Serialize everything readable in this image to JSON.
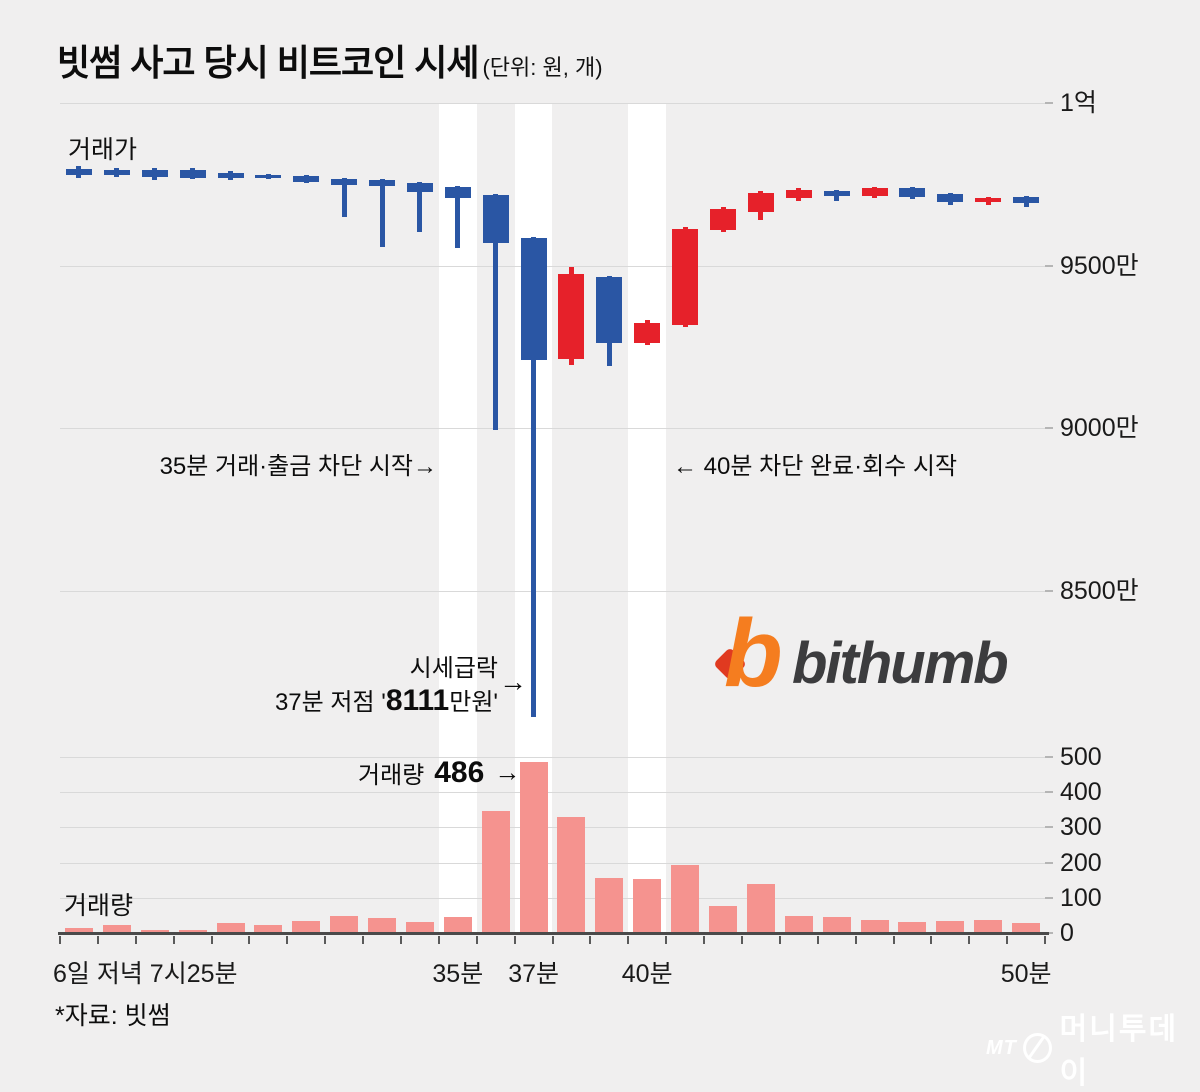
{
  "header": {
    "title": "빗썸 사고 당시 비트코인 시세",
    "unit_note": "(단위: 원, 개)"
  },
  "series_labels": {
    "price": "거래가",
    "volume": "거래량"
  },
  "annotations": {
    "block_start": "35분 거래·출금 차단 시작→",
    "block_end": "← 40분 차단 완료·회수 시작",
    "crash": {
      "line1": "시세급락",
      "line2_pre": "37분 저점 '",
      "line2_value": "8111",
      "line2_post": "만원'",
      "arrow": "→"
    },
    "volume_peak": {
      "label": "거래량",
      "value": "486",
      "arrow": "→"
    }
  },
  "source_note": "*자료: 빗썸",
  "logos": {
    "bithumb_icon": "b",
    "bithumb_wordmark": "bithumb",
    "watermark_mt": "MT",
    "watermark_name": "머니투데이"
  },
  "colors": {
    "up": "#e6212a",
    "down": "#2a56a4",
    "volume_bar": "#f5938f",
    "background": "#f0efef",
    "highlight_band": "#ffffff",
    "grid": "#d9d9d9",
    "axis": "#4a4a4a",
    "bithumb_orange": "#f57d1f",
    "bithumb_accent_red": "#e03a20",
    "bithumb_text": "#3c3c3e"
  },
  "chart_data": {
    "type": "candlestick+volume",
    "title": "빗썸 사고 당시 비트코인 시세",
    "unit": "원(가격, 만원 단위 눈금), 개(거래량)",
    "grid": true,
    "price_axis": {
      "side": "right",
      "ticks": [
        {
          "label": "1억",
          "value": 10000
        },
        {
          "label": "9500만",
          "value": 9500
        },
        {
          "label": "9000만",
          "value": 9000
        },
        {
          "label": "8500만",
          "value": 8500
        }
      ]
    },
    "volume_axis": {
      "side": "right",
      "ticks": [
        500,
        400,
        300,
        200,
        100,
        0
      ]
    },
    "x_axis": {
      "first_label": "6일 저녁 7시25분",
      "tick_labels": [
        {
          "label": "35분",
          "slot": 10
        },
        {
          "label": "37분",
          "slot": 12
        },
        {
          "label": "40분",
          "slot": 15
        },
        {
          "label": "50분",
          "slot": 25
        }
      ]
    },
    "highlight_slots": [
      10,
      12,
      15
    ],
    "candles": [
      {
        "minute": 25,
        "open": 9797,
        "high": 9806,
        "low": 9769,
        "close": 9778,
        "volume": 15
      },
      {
        "minute": 26,
        "open": 9795,
        "high": 9800,
        "low": 9772,
        "close": 9777,
        "volume": 22
      },
      {
        "minute": 27,
        "open": 9794,
        "high": 9800,
        "low": 9763,
        "close": 9772,
        "volume": 10
      },
      {
        "minute": 28,
        "open": 9794,
        "high": 9800,
        "low": 9766,
        "close": 9769,
        "volume": 8
      },
      {
        "minute": 29,
        "open": 9785,
        "high": 9791,
        "low": 9763,
        "close": 9769,
        "volume": 28
      },
      {
        "minute": 30,
        "open": 9778,
        "high": 9782,
        "low": 9766,
        "close": 9769,
        "volume": 22
      },
      {
        "minute": 31,
        "open": 9775,
        "high": 9778,
        "low": 9754,
        "close": 9757,
        "volume": 35
      },
      {
        "minute": 32,
        "open": 9766,
        "high": 9769,
        "low": 9649,
        "close": 9748,
        "volume": 48
      },
      {
        "minute": 33,
        "open": 9763,
        "high": 9766,
        "low": 9557,
        "close": 9745,
        "volume": 42
      },
      {
        "minute": 34,
        "open": 9754,
        "high": 9757,
        "low": 9603,
        "close": 9726,
        "volume": 30
      },
      {
        "minute": 35,
        "open": 9742,
        "high": 9745,
        "low": 9554,
        "close": 9708,
        "volume": 45
      },
      {
        "minute": 36,
        "open": 9717,
        "high": 9720,
        "low": 8994,
        "close": 9569,
        "volume": 345
      },
      {
        "minute": 37,
        "open": 9585,
        "high": 9588,
        "low": 8111,
        "close": 9209,
        "volume": 486
      },
      {
        "minute": 38,
        "open": 9212,
        "high": 9495,
        "low": 9194,
        "close": 9474,
        "volume": 330
      },
      {
        "minute": 39,
        "open": 9465,
        "high": 9468,
        "low": 9191,
        "close": 9262,
        "volume": 155
      },
      {
        "minute": 40,
        "open": 9262,
        "high": 9332,
        "low": 9255,
        "close": 9323,
        "volume": 153
      },
      {
        "minute": 41,
        "open": 9317,
        "high": 9618,
        "low": 9311,
        "close": 9612,
        "volume": 192
      },
      {
        "minute": 42,
        "open": 9609,
        "high": 9680,
        "low": 9603,
        "close": 9674,
        "volume": 77
      },
      {
        "minute": 43,
        "open": 9665,
        "high": 9729,
        "low": 9640,
        "close": 9723,
        "volume": 138
      },
      {
        "minute": 44,
        "open": 9708,
        "high": 9738,
        "low": 9698,
        "close": 9732,
        "volume": 49
      },
      {
        "minute": 45,
        "open": 9729,
        "high": 9732,
        "low": 9698,
        "close": 9714,
        "volume": 45
      },
      {
        "minute": 46,
        "open": 9714,
        "high": 9742,
        "low": 9708,
        "close": 9738,
        "volume": 37
      },
      {
        "minute": 47,
        "open": 9738,
        "high": 9742,
        "low": 9705,
        "close": 9711,
        "volume": 30
      },
      {
        "minute": 48,
        "open": 9720,
        "high": 9723,
        "low": 9686,
        "close": 9695,
        "volume": 34
      },
      {
        "minute": 49,
        "open": 9695,
        "high": 9711,
        "low": 9686,
        "close": 9708,
        "volume": 38
      },
      {
        "minute": 50,
        "open": 9711,
        "high": 9714,
        "low": 9680,
        "close": 9692,
        "volume": 28
      }
    ]
  }
}
